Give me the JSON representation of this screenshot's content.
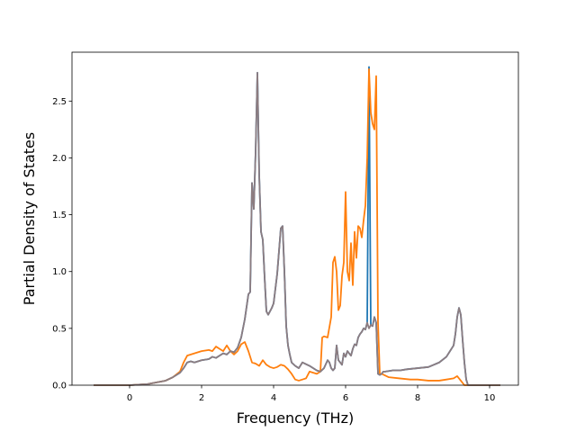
{
  "chart_data": {
    "type": "line",
    "title": "",
    "xlabel": "Frequency (THz)",
    "ylabel": "Partial Density of States",
    "xlim": [
      -1.6,
      10.8
    ],
    "ylim": [
      0,
      2.93
    ],
    "xticks": [
      0,
      2,
      4,
      6,
      8,
      10
    ],
    "yticks": [
      0.0,
      0.5,
      1.0,
      1.5,
      2.0,
      2.5
    ],
    "xtick_labels": [
      "0",
      "2",
      "4",
      "6",
      "8",
      "10"
    ],
    "ytick_labels": [
      "0.0",
      "0.5",
      "1.0",
      "1.5",
      "2.0",
      "2.5"
    ],
    "grid": false,
    "legend": "none",
    "series": [
      {
        "color": "#1f77b4",
        "x": [
          -1.0,
          0.0,
          0.5,
          1.0,
          1.2,
          1.4,
          1.5,
          1.6,
          1.7,
          1.8,
          2.0,
          2.2,
          2.3,
          2.4,
          2.5,
          2.6,
          2.7,
          2.8,
          2.9,
          3.0,
          3.1,
          3.2,
          3.3,
          3.35,
          3.4,
          3.45,
          3.5,
          3.55,
          3.6,
          3.65,
          3.7,
          3.75,
          3.8,
          3.85,
          3.9,
          3.95,
          4.0,
          4.1,
          4.2,
          4.25,
          4.3,
          4.35,
          4.4,
          4.45,
          4.5,
          4.6,
          4.7,
          4.8,
          5.0,
          5.2,
          5.3,
          5.4,
          5.5,
          5.55,
          5.6,
          5.65,
          5.7,
          5.75,
          5.8,
          5.85,
          5.9,
          5.95,
          6.0,
          6.05,
          6.1,
          6.15,
          6.2,
          6.25,
          6.3,
          6.35,
          6.4,
          6.45,
          6.5,
          6.55,
          6.6,
          6.65,
          6.7,
          6.75,
          6.8,
          6.85,
          6.9,
          6.95,
          7.0,
          7.05,
          7.1,
          7.3,
          7.5,
          7.7,
          8.0,
          8.3,
          8.6,
          8.8,
          8.9,
          9.0,
          9.05,
          9.1,
          9.15,
          9.2,
          9.25,
          9.3,
          9.35,
          9.4,
          9.5,
          10.3
        ],
        "y": [
          0.0,
          0.0,
          0.01,
          0.04,
          0.07,
          0.11,
          0.15,
          0.2,
          0.21,
          0.2,
          0.22,
          0.23,
          0.25,
          0.24,
          0.26,
          0.28,
          0.27,
          0.3,
          0.29,
          0.33,
          0.42,
          0.58,
          0.8,
          0.82,
          1.78,
          1.55,
          2.05,
          2.75,
          1.85,
          1.35,
          1.28,
          0.95,
          0.65,
          0.62,
          0.65,
          0.68,
          0.72,
          0.98,
          1.38,
          1.4,
          1.0,
          0.52,
          0.35,
          0.27,
          0.2,
          0.17,
          0.15,
          0.2,
          0.17,
          0.13,
          0.12,
          0.15,
          0.22,
          0.2,
          0.15,
          0.13,
          0.15,
          0.35,
          0.22,
          0.2,
          0.18,
          0.28,
          0.25,
          0.3,
          0.28,
          0.26,
          0.32,
          0.36,
          0.35,
          0.42,
          0.45,
          0.47,
          0.5,
          0.49,
          0.55,
          2.8,
          0.53,
          0.52,
          0.6,
          0.55,
          0.1,
          0.09,
          0.1,
          0.12,
          0.12,
          0.13,
          0.13,
          0.14,
          0.15,
          0.16,
          0.2,
          0.25,
          0.3,
          0.35,
          0.45,
          0.6,
          0.68,
          0.62,
          0.4,
          0.2,
          0.05,
          0.0,
          0.0,
          0.0
        ]
      },
      {
        "color": "#ff7f0e",
        "x": [
          -1.0,
          0.0,
          0.5,
          1.0,
          1.2,
          1.4,
          1.5,
          1.6,
          1.7,
          1.8,
          2.0,
          2.2,
          2.3,
          2.4,
          2.5,
          2.6,
          2.7,
          2.8,
          2.9,
          3.0,
          3.1,
          3.2,
          3.3,
          3.4,
          3.5,
          3.6,
          3.7,
          3.8,
          3.9,
          4.0,
          4.1,
          4.2,
          4.3,
          4.4,
          4.5,
          4.6,
          4.7,
          4.8,
          4.9,
          5.0,
          5.1,
          5.2,
          5.3,
          5.35,
          5.4,
          5.5,
          5.6,
          5.65,
          5.7,
          5.75,
          5.8,
          5.85,
          5.9,
          5.95,
          6.0,
          6.05,
          6.1,
          6.15,
          6.2,
          6.25,
          6.3,
          6.35,
          6.4,
          6.45,
          6.5,
          6.55,
          6.6,
          6.65,
          6.7,
          6.75,
          6.8,
          6.85,
          6.9,
          6.95,
          7.0,
          7.2,
          7.5,
          7.8,
          8.0,
          8.3,
          8.6,
          8.8,
          9.0,
          9.1,
          9.2,
          9.3,
          9.4,
          10.3
        ],
        "y": [
          0.0,
          0.0,
          0.01,
          0.04,
          0.07,
          0.12,
          0.2,
          0.26,
          0.27,
          0.28,
          0.3,
          0.31,
          0.3,
          0.34,
          0.32,
          0.3,
          0.35,
          0.3,
          0.27,
          0.3,
          0.36,
          0.38,
          0.3,
          0.2,
          0.19,
          0.17,
          0.22,
          0.18,
          0.16,
          0.15,
          0.16,
          0.18,
          0.17,
          0.14,
          0.1,
          0.05,
          0.04,
          0.05,
          0.06,
          0.12,
          0.11,
          0.1,
          0.12,
          0.42,
          0.43,
          0.42,
          0.6,
          1.08,
          1.13,
          1.0,
          0.66,
          0.7,
          0.96,
          1.08,
          1.7,
          1.0,
          0.92,
          1.25,
          0.88,
          1.35,
          1.12,
          1.4,
          1.38,
          1.3,
          1.45,
          1.58,
          2.0,
          2.78,
          2.4,
          2.3,
          2.25,
          2.72,
          0.55,
          0.1,
          0.1,
          0.07,
          0.06,
          0.05,
          0.05,
          0.04,
          0.04,
          0.05,
          0.06,
          0.08,
          0.04,
          0.0,
          0.0,
          0.0
        ]
      },
      {
        "color": "#8c7c80",
        "x": [
          -1.0,
          0.0,
          0.5,
          1.0,
          1.2,
          1.4,
          1.5,
          1.6,
          1.7,
          1.8,
          2.0,
          2.2,
          2.3,
          2.4,
          2.5,
          2.6,
          2.7,
          2.8,
          2.9,
          3.0,
          3.1,
          3.2,
          3.3,
          3.35,
          3.4,
          3.45,
          3.5,
          3.55,
          3.6,
          3.65,
          3.7,
          3.75,
          3.8,
          3.85,
          3.9,
          3.95,
          4.0,
          4.1,
          4.2,
          4.25,
          4.3,
          4.35,
          4.4,
          4.45,
          4.5,
          4.6,
          4.7,
          4.8,
          5.0,
          5.2,
          5.3,
          5.4,
          5.5,
          5.55,
          5.6,
          5.65,
          5.7,
          5.75,
          5.8,
          5.85,
          5.9,
          5.95,
          6.0,
          6.05,
          6.1,
          6.15,
          6.2,
          6.25,
          6.3,
          6.35,
          6.4,
          6.45,
          6.5,
          6.55,
          6.6,
          6.65,
          6.7,
          6.75,
          6.8,
          6.85,
          6.9,
          6.95,
          7.0,
          7.05,
          7.1,
          7.3,
          7.5,
          7.7,
          8.0,
          8.3,
          8.6,
          8.8,
          8.9,
          9.0,
          9.05,
          9.1,
          9.15,
          9.2,
          9.25,
          9.3,
          9.35,
          9.4,
          9.5,
          10.3
        ],
        "y": [
          0.0,
          0.0,
          0.01,
          0.04,
          0.07,
          0.11,
          0.15,
          0.2,
          0.21,
          0.2,
          0.22,
          0.23,
          0.25,
          0.24,
          0.26,
          0.28,
          0.27,
          0.3,
          0.29,
          0.33,
          0.42,
          0.58,
          0.8,
          0.82,
          1.78,
          1.55,
          2.05,
          2.75,
          1.85,
          1.35,
          1.28,
          0.95,
          0.65,
          0.62,
          0.65,
          0.68,
          0.72,
          0.98,
          1.38,
          1.4,
          1.0,
          0.52,
          0.35,
          0.27,
          0.2,
          0.17,
          0.15,
          0.2,
          0.17,
          0.13,
          0.12,
          0.15,
          0.22,
          0.2,
          0.15,
          0.13,
          0.15,
          0.35,
          0.22,
          0.2,
          0.18,
          0.28,
          0.25,
          0.3,
          0.28,
          0.26,
          0.32,
          0.36,
          0.35,
          0.42,
          0.45,
          0.47,
          0.5,
          0.49,
          0.55,
          0.5,
          0.53,
          0.52,
          0.6,
          0.55,
          0.1,
          0.09,
          0.1,
          0.12,
          0.12,
          0.13,
          0.13,
          0.14,
          0.15,
          0.16,
          0.2,
          0.25,
          0.3,
          0.35,
          0.45,
          0.6,
          0.68,
          0.62,
          0.4,
          0.2,
          0.05,
          0.0,
          0.0,
          0.0
        ]
      }
    ]
  }
}
